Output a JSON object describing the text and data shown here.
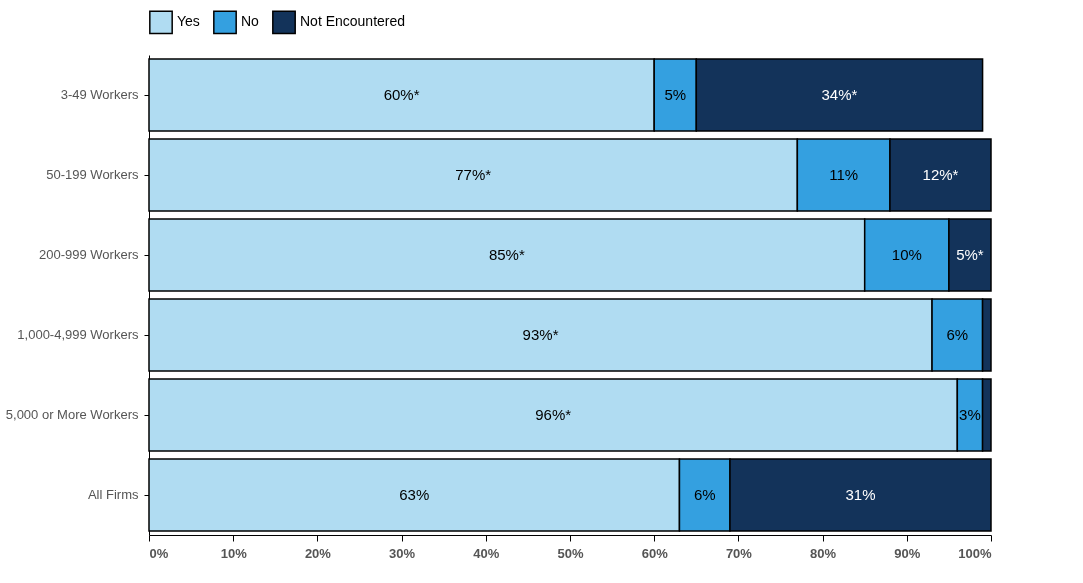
{
  "chart_data": {
    "type": "bar",
    "orientation": "horizontal",
    "stacked": true,
    "categories": [
      "3-49 Workers",
      "50-199 Workers",
      "200-999 Workers",
      "1,000-4,999 Workers",
      "5,000 or More Workers",
      "All Firms"
    ],
    "series": [
      {
        "name": "Yes",
        "color": "#b0dcf2",
        "values": [
          60,
          77,
          85,
          93,
          96,
          63
        ],
        "value_labels": [
          "60%*",
          "77%*",
          "85%*",
          "93%*",
          "96%*",
          "63%"
        ]
      },
      {
        "name": "No",
        "color": "#34a0e0",
        "values": [
          5,
          11,
          10,
          6,
          3,
          6
        ],
        "value_labels": [
          "5%",
          "11%",
          "10%",
          "6%",
          "3%",
          "6%"
        ]
      },
      {
        "name": "Not Encountered",
        "color": "#13335a",
        "values": [
          34,
          12,
          5,
          1,
          1,
          31
        ],
        "value_labels": [
          "34%*",
          "12%*",
          "5%*",
          null,
          null,
          "31%"
        ]
      }
    ],
    "xlim": [
      0,
      100
    ],
    "xticks": [
      {
        "value": 0,
        "label": "0%"
      },
      {
        "value": 10,
        "label": "10%"
      },
      {
        "value": 20,
        "label": "20%"
      },
      {
        "value": 30,
        "label": "30%"
      },
      {
        "value": 40,
        "label": "40%"
      },
      {
        "value": 50,
        "label": "50%"
      },
      {
        "value": 60,
        "label": "60%"
      },
      {
        "value": 70,
        "label": "70%"
      },
      {
        "value": 80,
        "label": "80%"
      },
      {
        "value": 90,
        "label": "90%"
      },
      {
        "value": 100,
        "label": "100%"
      }
    ],
    "grid": false,
    "legend": "top"
  }
}
